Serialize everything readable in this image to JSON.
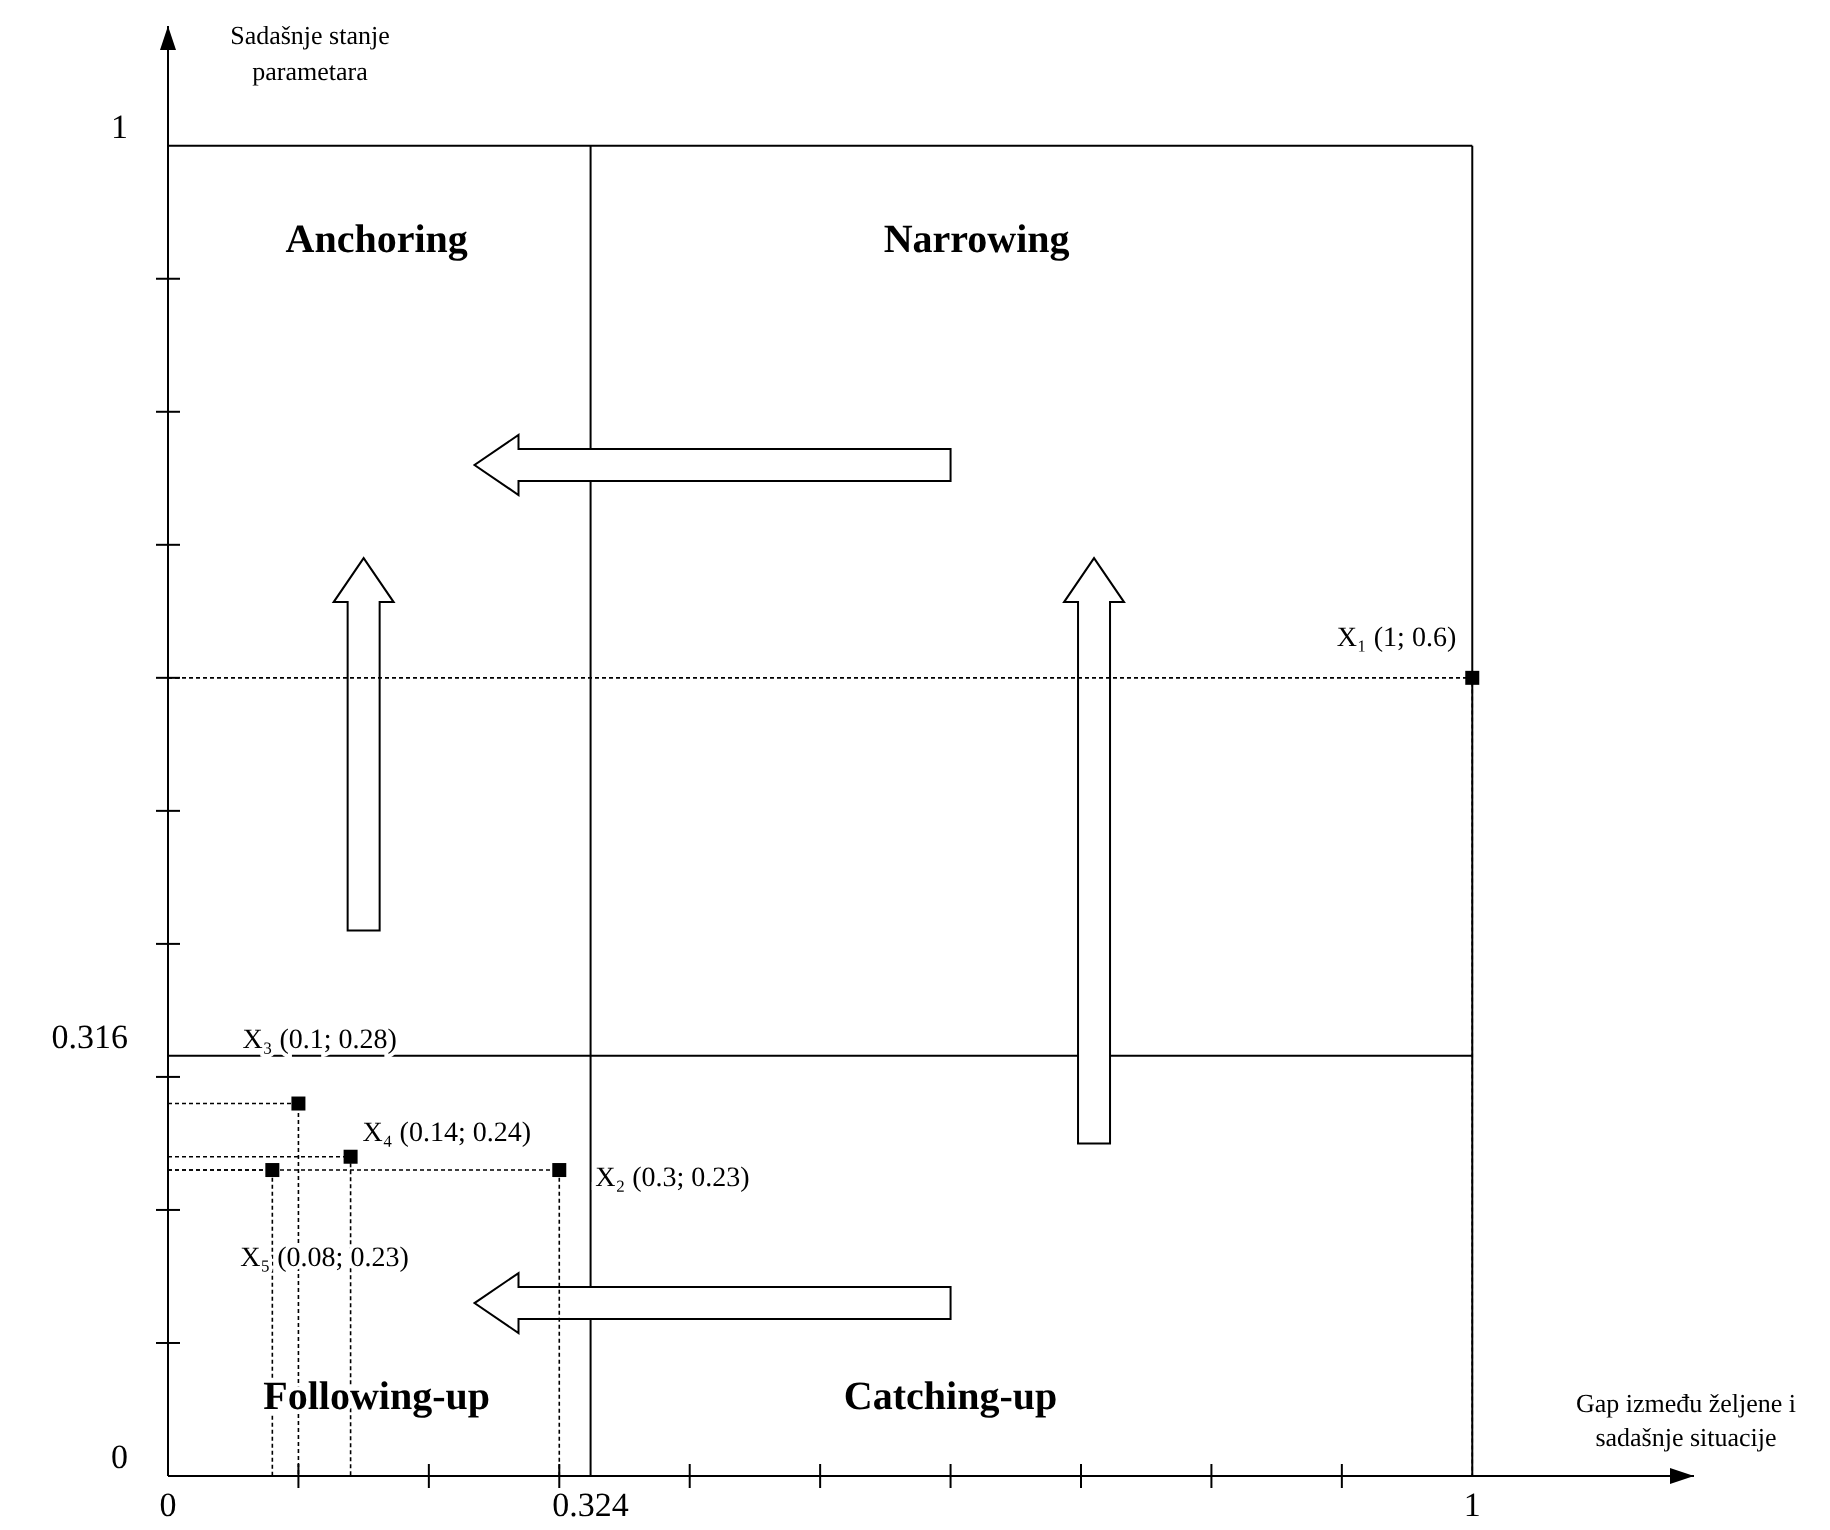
{
  "chart_data": {
    "type": "scatter",
    "xlabel": "Gap između željene i sadašnje situacije",
    "ylabel": "Sadašnje stanje parametara",
    "x": [
      1,
      0.3,
      0.1,
      0.14,
      0.08
    ],
    "series": [
      {
        "color": "#000000",
        "marker": "square",
        "values": [
          0.6,
          0.23,
          0.28,
          0.24,
          0.23
        ]
      },
      {
        "type": "line",
        "line_style": "dotted",
        "color": "#000000",
        "x": [
          0,
          1,
          1
        ],
        "values": [
          0.6,
          0.6,
          0
        ]
      },
      {
        "type": "line",
        "line_style": "dotted",
        "color": "#000000",
        "x": [
          0,
          0.3,
          0.3
        ],
        "values": [
          0.23,
          0.23,
          0
        ]
      },
      {
        "type": "line",
        "line_style": "dotted",
        "color": "#000000",
        "x": [
          0,
          0.1,
          0.1
        ],
        "values": [
          0.28,
          0.28,
          0
        ]
      },
      {
        "type": "line",
        "line_style": "dotted",
        "color": "#000000",
        "x": [
          0,
          0.14,
          0.14
        ],
        "values": [
          0.24,
          0.24,
          0
        ]
      },
      {
        "type": "line",
        "line_style": "dotted",
        "color": "#000000",
        "x": [
          0,
          0.08,
          0.08
        ],
        "values": [
          0.23,
          0.23,
          0
        ]
      }
    ],
    "xlim": [
      0,
      1.17
    ],
    "ylim": [
      0,
      1.09
    ],
    "xticks": [
      0,
      {
        "value": 0.1,
        "label": null
      },
      {
        "value": 0.2,
        "label": null
      },
      {
        "value": 0.3,
        "label": null
      },
      0.324,
      {
        "value": 0.4,
        "label": null
      },
      {
        "value": 0.5,
        "label": null
      },
      {
        "value": 0.6,
        "label": null
      },
      {
        "value": 0.7,
        "label": null
      },
      {
        "value": 0.8,
        "label": null
      },
      {
        "value": 0.9,
        "label": null
      },
      1
    ],
    "yticks": [
      0,
      {
        "value": 0.1,
        "label": null
      },
      {
        "value": 0.2,
        "label": null
      },
      {
        "value": 0.3,
        "label": null
      },
      0.316,
      {
        "value": 0.4,
        "label": null
      },
      {
        "value": 0.5,
        "label": null
      },
      {
        "value": 0.6,
        "label": null
      },
      {
        "value": 0.7,
        "label": null
      },
      {
        "value": 0.8,
        "label": null
      },
      {
        "value": 0.9,
        "label": null
      },
      1
    ],
    "ref_lines": [
      {
        "axis": "x",
        "value": 0.324
      },
      {
        "axis": "y",
        "value": 0.316
      },
      {
        "axis": "y",
        "value": 1
      },
      {
        "axis": "x",
        "value": 1
      }
    ],
    "annotations": [
      {
        "text": "X₁ (1; 0.6)",
        "x": 1,
        "y": 0.6
      },
      {
        "text": "X₂ (0.3; 0.23)",
        "x": 0.3,
        "y": 0.23
      },
      {
        "text": "X₃ (0.1; 0.28)",
        "x": 0.1,
        "y": 0.28
      },
      {
        "text": "X₄ (0.14; 0.24)",
        "x": 0.14,
        "y": 0.24
      },
      {
        "text": "X₅ (0.08; 0.23)",
        "x": 0.08,
        "y": 0.23
      },
      "Anchoring",
      "Narrowing",
      "Following-up",
      "Catching-up"
    ]
  }
}
